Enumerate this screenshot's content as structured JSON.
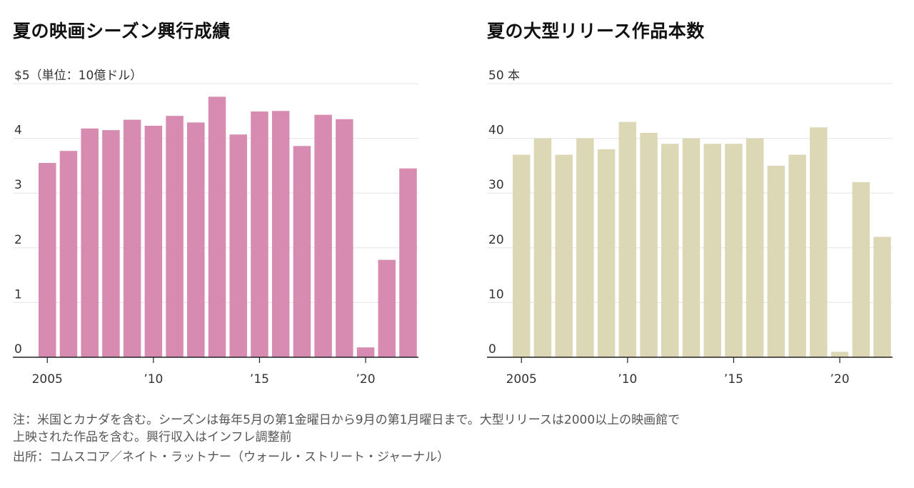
{
  "chart_data": [
    {
      "type": "bar",
      "title": "夏の映画シーズン興行成績",
      "unit_label": "$5（単位：10億ドル）",
      "ylim": [
        0,
        5
      ],
      "ytick_labels": [
        "0",
        "1",
        "2",
        "3",
        "4"
      ],
      "x": [
        2005,
        2006,
        2007,
        2008,
        2009,
        2010,
        2011,
        2012,
        2013,
        2014,
        2015,
        2016,
        2017,
        2018,
        2019,
        2020,
        2021,
        2022
      ],
      "values": [
        3.55,
        3.77,
        4.18,
        4.15,
        4.34,
        4.23,
        4.41,
        4.29,
        4.76,
        4.07,
        4.49,
        4.5,
        3.86,
        4.43,
        4.35,
        0.18,
        1.78,
        3.45
      ],
      "xtick_labels": [
        "2005",
        "’10",
        "’15",
        "’20"
      ],
      "color": "#d78bb0",
      "grid": true
    },
    {
      "type": "bar",
      "title": "夏の大型リリース作品本数",
      "unit_label": "50 本",
      "ylim": [
        0,
        50
      ],
      "ytick_labels": [
        "0",
        "10",
        "20",
        "30",
        "40"
      ],
      "x": [
        2005,
        2006,
        2007,
        2008,
        2009,
        2010,
        2011,
        2012,
        2013,
        2014,
        2015,
        2016,
        2017,
        2018,
        2019,
        2020,
        2021,
        2022
      ],
      "values": [
        37,
        40,
        37,
        40,
        38,
        43,
        41,
        39,
        40,
        39,
        39,
        40,
        35,
        37,
        42,
        1,
        32,
        22
      ],
      "xtick_labels": [
        "2005",
        "’10",
        "’15",
        "’20"
      ],
      "color": "#dcd7b4",
      "grid": true
    }
  ],
  "notes": {
    "line1": "注：米国とカナダを含む。シーズンは毎年5月の第1金曜日から9月の第1月曜日まで。大型リリースは2000以上の映画館で",
    "line2": "上映された作品を含む。興行収入はインフレ調整前",
    "source": "出所：コムスコア／ネイト・ラットナー（ウォール・ストリート・ジャーナル）"
  }
}
